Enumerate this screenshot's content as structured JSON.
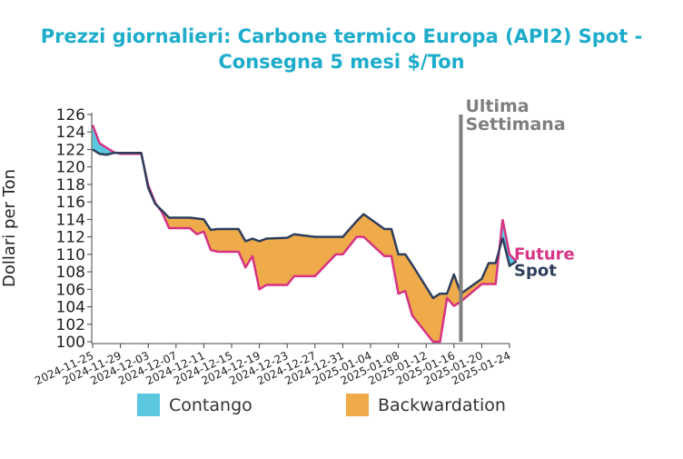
{
  "chart_data": {
    "type": "area",
    "title": "Prezzi giornalieri: Carbone termico Europa (API2) Spot - Consegna 5 mesi $/Ton",
    "ylabel": "Dollari per Ton",
    "xlabel": "",
    "ylim": [
      100,
      126
    ],
    "yticks": [
      100,
      102,
      104,
      106,
      108,
      110,
      112,
      114,
      116,
      118,
      120,
      122,
      124,
      126
    ],
    "xlim": [
      "2024-11-25",
      "2025-01-24"
    ],
    "xticks": [
      "2024-11-25",
      "2024-11-29",
      "2024-12-03",
      "2024-12-07",
      "2024-12-11",
      "2024-12-15",
      "2024-12-19",
      "2024-12-23",
      "2024-12-27",
      "2024-12-31",
      "2025-01-04",
      "2025-01-08",
      "2025-01-12",
      "2025-01-16",
      "2025-01-20",
      "2025-01-24"
    ],
    "x": [
      "2024-11-25",
      "2024-11-26",
      "2024-11-27",
      "2024-11-28",
      "2024-11-29",
      "2024-12-02",
      "2024-12-03",
      "2024-12-04",
      "2024-12-05",
      "2024-12-06",
      "2024-12-09",
      "2024-12-10",
      "2024-12-11",
      "2024-12-12",
      "2024-12-13",
      "2024-12-16",
      "2024-12-17",
      "2024-12-18",
      "2024-12-19",
      "2024-12-20",
      "2024-12-23",
      "2024-12-24",
      "2024-12-27",
      "2024-12-30",
      "2024-12-31",
      "2025-01-02",
      "2025-01-03",
      "2025-01-06",
      "2025-01-07",
      "2025-01-08",
      "2025-01-09",
      "2025-01-10",
      "2025-01-13",
      "2025-01-14",
      "2025-01-15",
      "2025-01-16",
      "2025-01-17",
      "2025-01-20",
      "2025-01-21",
      "2025-01-22",
      "2025-01-23"
    ],
    "series": [
      {
        "name": "Spot",
        "color": "#2e3f5c",
        "values": [
          122.0,
          121.5,
          121.4,
          121.6,
          121.6,
          121.6,
          117.6,
          115.8,
          115.0,
          114.2,
          114.2,
          114.1,
          114.0,
          112.8,
          112.9,
          112.9,
          111.5,
          111.8,
          111.5,
          111.8,
          111.9,
          112.3,
          112.0,
          112.0,
          112.0,
          113.8,
          114.6,
          112.9,
          112.9,
          110.0,
          110.0,
          108.8,
          105.0,
          105.5,
          105.5,
          107.7,
          105.5,
          107.2,
          109.0,
          109.0,
          111.9
        ]
      },
      {
        "name": "Future",
        "color": "#d63384",
        "values": [
          124.8,
          122.7,
          122.2,
          121.7,
          121.5,
          121.5,
          117.9,
          115.9,
          114.8,
          113.0,
          113.0,
          112.3,
          112.6,
          110.5,
          110.3,
          110.3,
          108.5,
          109.8,
          106.0,
          106.5,
          106.5,
          107.5,
          107.5,
          110.0,
          110.0,
          112.0,
          112.0,
          109.8,
          109.8,
          105.5,
          105.8,
          103.0,
          100.0,
          100.0,
          105.0,
          104.1,
          104.6,
          106.6,
          106.6,
          106.6,
          114.0
        ]
      }
    ],
    "tail": [
      {
        "x": "2025-01-24",
        "spot": 108.7,
        "future": 110.0
      },
      {
        "x": "2025-01-25",
        "spot": 109.2,
        "future": 109.2
      }
    ],
    "fill_colors": {
      "contango": "#5bc8e0",
      "backwardation": "#efab4a"
    },
    "annotation": {
      "date": "2025-01-17",
      "text_line1": "Ultima",
      "text_line2": "Settimana",
      "color": "#7f7f7f"
    },
    "end_labels": {
      "future": "Future",
      "spot": "Spot"
    },
    "legend": [
      {
        "label": "Contango",
        "color": "#5bc8e0"
      },
      {
        "label": "Backwardation",
        "color": "#efab4a"
      }
    ],
    "legend_position": "bottom",
    "grid": false
  }
}
